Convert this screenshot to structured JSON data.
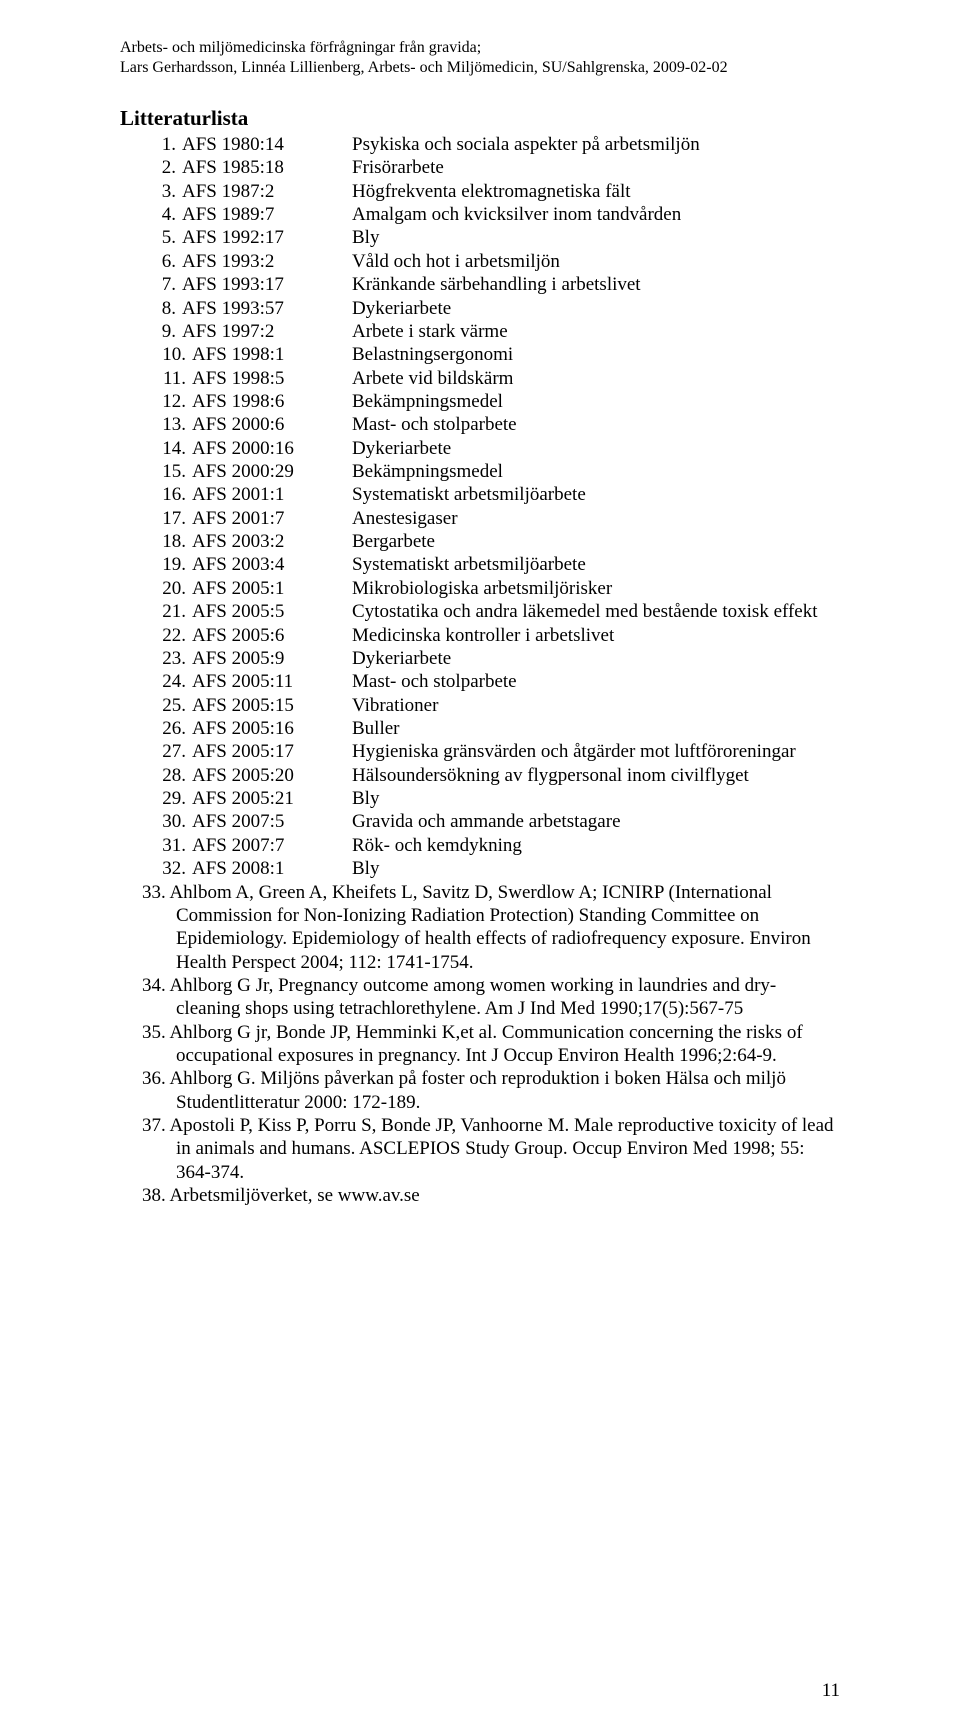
{
  "header": {
    "line1": "Arbets- och miljömedicinska förfrågningar från gravida;",
    "line2": "Lars Gerhardsson, Linnéa Lillienberg, Arbets- och Miljömedicin, SU/Sahlgrenska, 2009-02-02"
  },
  "section_title": "Litteraturlista",
  "tabular_refs": [
    {
      "n": "1.",
      "code": "AFS 1980:14",
      "desc": "Psykiska och sociala aspekter på arbetsmiljön"
    },
    {
      "n": "2.",
      "code": "AFS 1985:18",
      "desc": "Frisörarbete"
    },
    {
      "n": "3.",
      "code": "AFS 1987:2",
      "desc": "Högfrekventa elektromagnetiska fält"
    },
    {
      "n": "4.",
      "code": "AFS 1989:7",
      "desc": "Amalgam och kvicksilver inom tandvården"
    },
    {
      "n": "5.",
      "code": "AFS 1992:17",
      "desc": "Bly"
    },
    {
      "n": "6.",
      "code": "AFS 1993:2",
      "desc": "Våld och hot i arbetsmiljön"
    },
    {
      "n": "7.",
      "code": "AFS 1993:17",
      "desc": "Kränkande särbehandling i arbetslivet"
    },
    {
      "n": "8.",
      "code": "AFS 1993:57",
      "desc": "Dykeriarbete"
    },
    {
      "n": "9.",
      "code": "AFS 1997:2",
      "desc": "Arbete i stark värme"
    },
    {
      "n": "10.",
      "code": "AFS 1998:1",
      "desc": "Belastningsergonomi"
    },
    {
      "n": "11.",
      "code": "AFS 1998:5",
      "desc": "Arbete vid bildskärm"
    },
    {
      "n": "12.",
      "code": "AFS 1998:6",
      "desc": "Bekämpningsmedel"
    },
    {
      "n": "13.",
      "code": "AFS 2000:6",
      "desc": "Mast- och stolparbete"
    },
    {
      "n": "14.",
      "code": "AFS 2000:16",
      "desc": "Dykeriarbete"
    },
    {
      "n": "15.",
      "code": "AFS 2000:29",
      "desc": "Bekämpningsmedel"
    },
    {
      "n": "16.",
      "code": "AFS 2001:1",
      "desc": "Systematiskt arbetsmiljöarbete"
    },
    {
      "n": "17.",
      "code": "AFS 2001:7",
      "desc": "Anestesigaser"
    },
    {
      "n": "18.",
      "code": "AFS 2003:2",
      "desc": "Bergarbete"
    },
    {
      "n": "19.",
      "code": "AFS 2003:4",
      "desc": "Systematiskt arbetsmiljöarbete"
    },
    {
      "n": "20.",
      "code": "AFS 2005:1",
      "desc": "Mikrobiologiska arbetsmiljörisker"
    },
    {
      "n": "21.",
      "code": "AFS 2005:5",
      "desc": "Cytostatika och andra läkemedel med bestående toxisk effekt"
    },
    {
      "n": "22.",
      "code": "AFS 2005:6",
      "desc": "Medicinska kontroller i arbetslivet"
    },
    {
      "n": "23.",
      "code": "AFS 2005:9",
      "desc": "Dykeriarbete"
    },
    {
      "n": "24.",
      "code": "AFS 2005:11",
      "desc": "Mast- och stolparbete"
    },
    {
      "n": "25.",
      "code": "AFS 2005:15",
      "desc": "Vibrationer"
    },
    {
      "n": "26.",
      "code": "AFS 2005:16",
      "desc": "Buller"
    },
    {
      "n": "27.",
      "code": "AFS 2005:17",
      "desc": "Hygieniska gränsvärden och åtgärder mot luftföroreningar"
    },
    {
      "n": "28.",
      "code": "AFS 2005:20",
      "desc": "Hälsoundersökning av flygpersonal inom civilflyget"
    },
    {
      "n": "29.",
      "code": "AFS 2005:21",
      "desc": "Bly"
    },
    {
      "n": "30.",
      "code": "AFS 2007:5",
      "desc": "Gravida och ammande arbetstagare"
    },
    {
      "n": "31.",
      "code": "AFS 2007:7",
      "desc": "Rök- och kemdykning"
    },
    {
      "n": "32.",
      "code": "AFS 2008:1",
      "desc": "Bly"
    }
  ],
  "para_refs": [
    {
      "n": "33.",
      "text": "Ahlbom A, Green A, Kheifets L, Savitz D, Swerdlow A; ICNIRP (International Commission for Non-Ionizing Radiation Protection) Standing Committee on Epidemiology. Epidemiology of health effects of radiofrequency exposure. Environ Health Perspect 2004; 112: 1741-1754."
    },
    {
      "n": "34.",
      "text": "Ahlborg G Jr, Pregnancy outcome among women working in laundries and dry-cleaning shops using tetrachlorethylene. Am J Ind Med 1990;17(5):567-75"
    },
    {
      "n": "35.",
      "text": "Ahlborg G jr, Bonde JP, Hemminki K,et al. Communication concerning the risks of occupational exposures in pregnancy. Int J Occup Environ Health 1996;2:64-9."
    },
    {
      "n": "36.",
      "text": "Ahlborg G. Miljöns påverkan på foster och reproduktion i boken Hälsa och miljö Studentlitteratur 2000: 172-189."
    },
    {
      "n": "37.",
      "text": "Apostoli P, Kiss P, Porru S, Bonde JP, Vanhoorne M. Male reproductive toxicity of lead in animals and humans. ASCLEPIOS Study Group. Occup Environ Med 1998; 55: 364-374."
    },
    {
      "n": "38.",
      "text": "Arbetsmiljöverket, se www.av.se"
    }
  ],
  "layout": {
    "num_col_width_narrow": 34,
    "num_col_width_wide": 44,
    "code_col_width": 152,
    "desc_left_tab": 210
  },
  "page_number": "11"
}
